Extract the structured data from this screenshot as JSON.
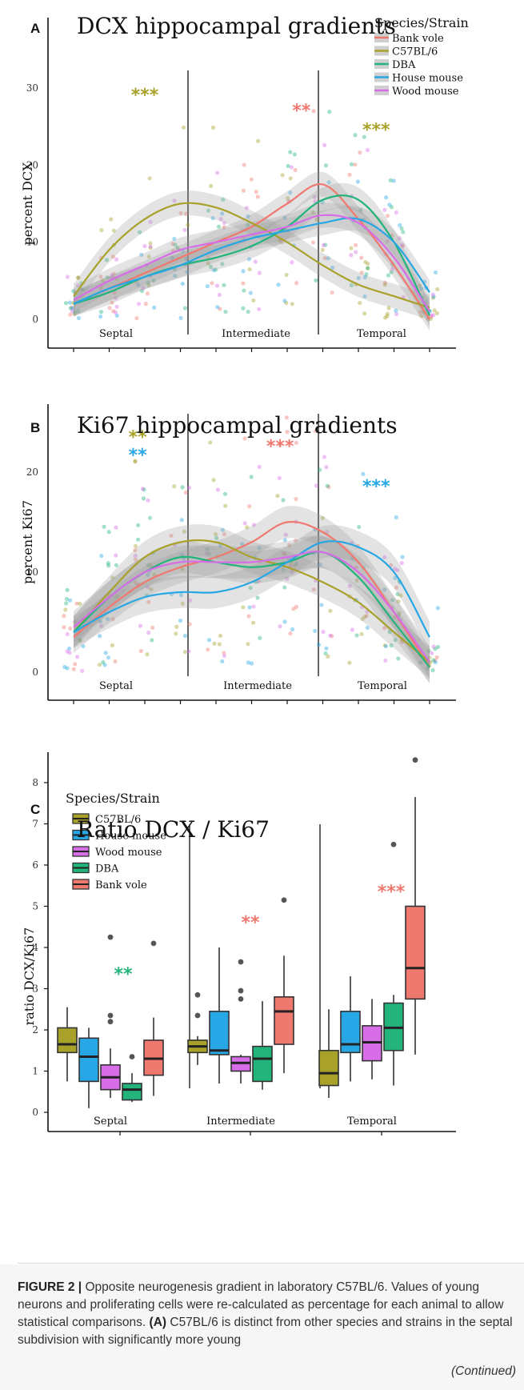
{
  "figure": {
    "caption_label": "FIGURE 2 |",
    "caption_text": " Opposite neurogenesis gradient in laboratory C57BL/6. Values of young neurons and proliferating cells were re-calculated as percentage for each animal to allow statistical comparisons. ",
    "caption_bold": "(A)",
    "caption_text2": " C57BL/6 is distinct from other species and strains in the septal subdivision with significantly more young",
    "continued": "(Continued)"
  },
  "colors": {
    "Bank vole": "#f0796f",
    "C57BL/6": "#a8a12a",
    "DBA": "#22b47a",
    "House mouse": "#27a7e5",
    "Wood mouse": "#d86de8"
  },
  "chart_data": [
    {
      "id": "A",
      "type": "line",
      "title": "DCX hippocampal gradients",
      "ylabel": "percent DCX",
      "ylim": [
        0,
        30
      ],
      "yticks": [
        "0",
        "10",
        "20",
        "30"
      ],
      "regions": [
        "Septal",
        "Intermediate",
        "Temporal"
      ],
      "legend_title": "Species/Strain",
      "legend_position": "top-right",
      "legend": [
        "Bank vole",
        "C57BL/6",
        "DBA",
        "House mouse",
        "Wood mouse"
      ],
      "x": [
        1,
        2,
        3,
        4,
        5,
        6,
        7,
        8,
        9,
        10,
        11
      ],
      "series": [
        {
          "name": "Bank vole",
          "values": [
            2,
            4,
            6,
            8,
            10,
            12,
            15,
            17.5,
            13,
            7,
            0
          ]
        },
        {
          "name": "C57BL/6",
          "values": [
            3,
            9,
            13,
            15,
            14.5,
            12.5,
            10,
            7,
            4.5,
            3,
            1.5
          ]
        },
        {
          "name": "DBA",
          "values": [
            2,
            3.5,
            5.5,
            7,
            8,
            9.5,
            12,
            15.5,
            15.5,
            10,
            0.5
          ]
        },
        {
          "name": "House mouse",
          "values": [
            2,
            4,
            5.5,
            7,
            9,
            10.5,
            11.5,
            12.5,
            13,
            10,
            3.5
          ]
        },
        {
          "name": "Wood mouse",
          "values": [
            2.5,
            5,
            7,
            9,
            10,
            11,
            12,
            13.5,
            12.5,
            8,
            1
          ]
        }
      ],
      "annotations": [
        {
          "text": "***",
          "color": "C57BL/6",
          "x": 3,
          "y": 30
        },
        {
          "text": "**",
          "color": "Bank vole",
          "x": 7.4,
          "y": 28
        },
        {
          "text": "***",
          "color": "C57BL/6",
          "x": 9.5,
          "y": 25.5
        }
      ]
    },
    {
      "id": "B",
      "type": "line",
      "title": "Ki67 hippocampal gradients",
      "ylabel": "percent Ki67",
      "ylim": [
        0,
        26
      ],
      "yticks": [
        "0",
        "10",
        "20"
      ],
      "regions": [
        "Septal",
        "Intermediate",
        "Temporal"
      ],
      "x": [
        1,
        2,
        3,
        4,
        5,
        6,
        7,
        8,
        9,
        10,
        11
      ],
      "series": [
        {
          "name": "Bank vole",
          "values": [
            3.5,
            6.5,
            9,
            10.5,
            11.5,
            13,
            15,
            14,
            11,
            6,
            0.5
          ]
        },
        {
          "name": "C57BL/6",
          "values": [
            4,
            8,
            11.5,
            13,
            13,
            11.5,
            10.5,
            9,
            7,
            4,
            1
          ]
        },
        {
          "name": "DBA",
          "values": [
            4,
            7.5,
            10,
            11.5,
            11,
            10.5,
            11,
            12,
            9.5,
            5,
            0.5
          ]
        },
        {
          "name": "House mouse",
          "values": [
            4,
            6,
            7.5,
            8,
            8,
            9,
            11,
            13,
            12.5,
            10,
            3.5
          ]
        },
        {
          "name": "Wood mouse",
          "values": [
            4.5,
            7.5,
            10,
            11,
            11,
            11,
            11.5,
            12,
            10,
            6,
            1
          ]
        }
      ],
      "annotations": [
        {
          "text": "**",
          "color": "C57BL/6",
          "x": 2.8,
          "y": 24.2
        },
        {
          "text": "**",
          "color": "House mouse",
          "x": 2.8,
          "y": 22.4
        },
        {
          "text": "***",
          "color": "Bank vole",
          "x": 6.8,
          "y": 23.3
        },
        {
          "text": "***",
          "color": "House mouse",
          "x": 9.5,
          "y": 19.3
        }
      ]
    },
    {
      "id": "C",
      "type": "box",
      "title": "Ratio DCX / Ki67",
      "ylabel": "ratio DCX/Ki67",
      "ylim": [
        0,
        8.6
      ],
      "yticks": [
        "0",
        "1",
        "2",
        "3",
        "4",
        "5",
        "6",
        "7",
        "8"
      ],
      "regions": [
        "Septal",
        "Intermediate",
        "Temporal"
      ],
      "legend_title": "Species/Strain",
      "legend_position": "top-left",
      "legend": [
        "C57BL/6",
        "House mouse",
        "Wood mouse",
        "DBA",
        "Bank vole"
      ],
      "boxes": [
        {
          "region": "Septal",
          "series": "C57BL/6",
          "min": 0.75,
          "q1": 1.45,
          "median": 1.65,
          "q3": 2.05,
          "max": 2.55,
          "outliers": []
        },
        {
          "region": "Septal",
          "series": "House mouse",
          "min": 0.1,
          "q1": 0.75,
          "median": 1.35,
          "q3": 1.8,
          "max": 2.05,
          "outliers": [
            6.75
          ]
        },
        {
          "region": "Septal",
          "series": "Wood mouse",
          "min": 0.35,
          "q1": 0.55,
          "median": 0.85,
          "q3": 1.15,
          "max": 1.55,
          "outliers": [
            2.35,
            2.2,
            4.25
          ]
        },
        {
          "region": "Septal",
          "series": "DBA",
          "min": 0.25,
          "q1": 0.3,
          "median": 0.55,
          "q3": 0.7,
          "max": 0.95,
          "outliers": [
            1.35
          ]
        },
        {
          "region": "Septal",
          "series": "Bank vole",
          "min": 0.4,
          "q1": 0.9,
          "median": 1.3,
          "q3": 1.75,
          "max": 2.3,
          "outliers": [
            4.1
          ]
        },
        {
          "region": "Intermediate",
          "series": "C57BL/6",
          "min": 1.15,
          "q1": 1.45,
          "median": 1.6,
          "q3": 1.75,
          "max": 1.85,
          "outliers": [
            2.35,
            2.85
          ]
        },
        {
          "region": "Intermediate",
          "series": "House mouse",
          "min": 0.7,
          "q1": 1.4,
          "median": 1.5,
          "q3": 2.45,
          "max": 4.0,
          "outliers": []
        },
        {
          "region": "Intermediate",
          "series": "Wood mouse",
          "min": 0.7,
          "q1": 1.0,
          "median": 1.2,
          "q3": 1.35,
          "max": 1.4,
          "outliers": [
            2.75,
            2.95,
            3.65
          ]
        },
        {
          "region": "Intermediate",
          "series": "DBA",
          "min": 0.55,
          "q1": 0.75,
          "median": 1.3,
          "q3": 1.6,
          "max": 2.7,
          "outliers": []
        },
        {
          "region": "Intermediate",
          "series": "Bank vole",
          "min": 0.95,
          "q1": 1.65,
          "median": 2.45,
          "q3": 2.8,
          "max": 3.8,
          "outliers": [
            5.15
          ]
        },
        {
          "region": "Temporal",
          "series": "C57BL/6",
          "min": 0.35,
          "q1": 0.65,
          "median": 0.95,
          "q3": 1.5,
          "max": 2.5,
          "outliers": []
        },
        {
          "region": "Temporal",
          "series": "House mouse",
          "min": 0.75,
          "q1": 1.45,
          "median": 1.65,
          "q3": 2.45,
          "max": 3.3,
          "outliers": []
        },
        {
          "region": "Temporal",
          "series": "Wood mouse",
          "min": 0.8,
          "q1": 1.25,
          "median": 1.7,
          "q3": 2.1,
          "max": 2.75,
          "outliers": []
        },
        {
          "region": "Temporal",
          "series": "DBA",
          "min": 0.65,
          "q1": 1.5,
          "median": 2.05,
          "q3": 2.65,
          "max": 2.85,
          "outliers": [
            6.5
          ]
        },
        {
          "region": "Temporal",
          "series": "Bank vole",
          "min": 1.4,
          "q1": 2.75,
          "median": 3.5,
          "q3": 5.0,
          "max": 7.65,
          "outliers": [
            8.55
          ]
        }
      ],
      "annotations": [
        {
          "text": "**",
          "color": "DBA",
          "region": "Septal",
          "y": 3.45
        },
        {
          "text": "**",
          "color": "Bank vole",
          "region": "Intermediate",
          "y": 4.7
        },
        {
          "text": "***",
          "color": "Bank vole",
          "region": "Temporal",
          "y": 5.45
        }
      ]
    }
  ]
}
